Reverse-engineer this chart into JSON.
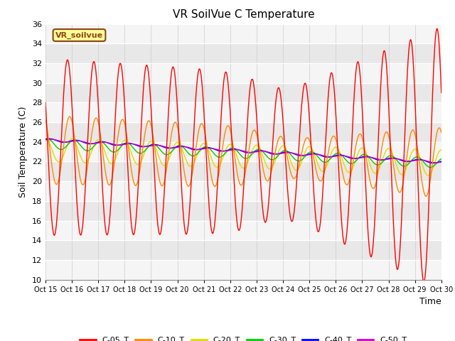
{
  "title": "VR SoilVue C Temperature",
  "ylabel": "Soil Temperature (C)",
  "xlabel": "Time",
  "ylim": [
    10,
    36
  ],
  "xlim": [
    0,
    360
  ],
  "series_colors": {
    "C-05_T": "#ff0000",
    "C-10_T": "#ff8800",
    "C-20_T": "#dddd00",
    "C-30_T": "#00cc00",
    "C-40_T": "#0000ff",
    "C-50_T": "#cc00cc"
  },
  "watermark_text": "VR_soilvue",
  "xtick_labels": [
    "Oct 15",
    "Oct 16",
    "Oct 17",
    "Oct 18",
    "Oct 19",
    "Oct 20",
    "Oct 21",
    "Oct 22",
    "Oct 23",
    "Oct 24",
    "Oct 25",
    "Oct 26",
    "Oct 27",
    "Oct 28",
    "Oct 29",
    "Oct 30"
  ],
  "ytick_values": [
    10,
    12,
    14,
    16,
    18,
    20,
    22,
    24,
    26,
    28,
    30,
    32,
    34,
    36
  ]
}
